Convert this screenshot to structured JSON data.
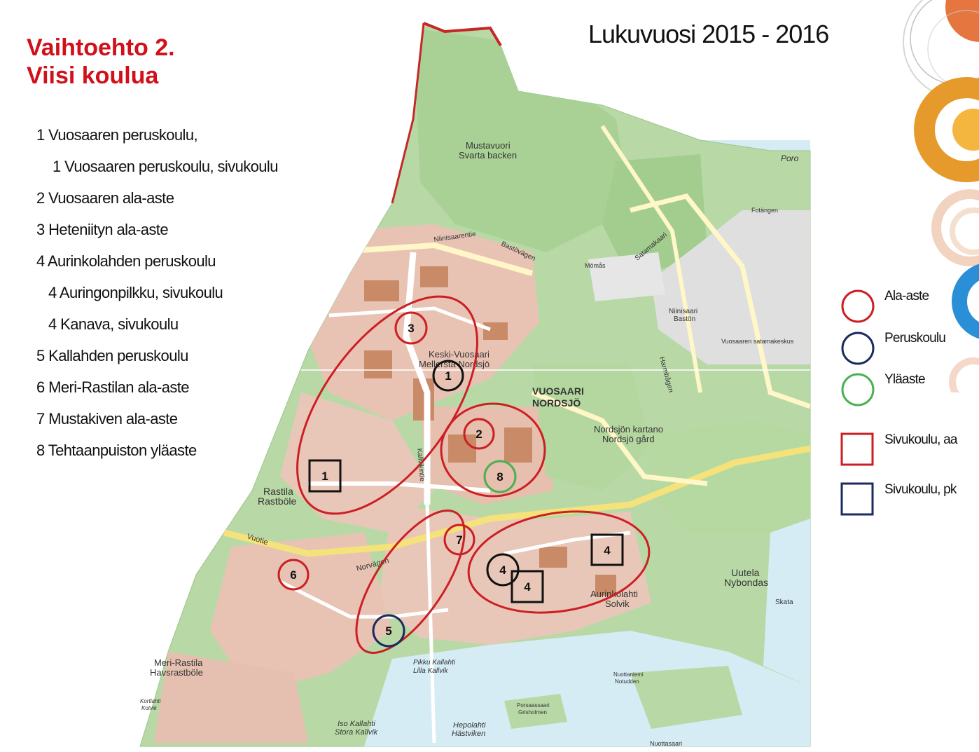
{
  "header": {
    "title_line1": "Vaihtoehto 2.",
    "title_line2": "Viisi koulua",
    "year": "Lukuvuosi 2015 - 2016"
  },
  "schools": [
    {
      "text": "1 Vuosaaren peruskoulu,",
      "indent": 0
    },
    {
      "text": "1 Vuosaaren peruskoulu, sivukoulu",
      "indent": 2
    },
    {
      "text": "2 Vuosaaren ala-aste",
      "indent": 0
    },
    {
      "text": "3 Heteniityn ala-aste",
      "indent": 0
    },
    {
      "text": "4 Aurinkolahden peruskoulu",
      "indent": 0
    },
    {
      "text": "4 Auringonpilkku, sivukoulu",
      "indent": 1
    },
    {
      "text": "4 Kanava, sivukoulu",
      "indent": 1
    },
    {
      "text": "5 Kallahden peruskoulu",
      "indent": 0
    },
    {
      "text": "6 Meri-Rastilan ala-aste",
      "indent": 0
    },
    {
      "text": "7 Mustakiven ala-aste",
      "indent": 0
    },
    {
      "text": "8 Tehtaanpuiston yläaste",
      "indent": 0
    }
  ],
  "legend": [
    {
      "label": "Ala-aste",
      "shape": "circle",
      "color": "#cc1f24"
    },
    {
      "label": "Peruskoulu",
      "shape": "circle",
      "color": "#1c2a5e"
    },
    {
      "label": "Yläaste",
      "shape": "circle",
      "color": "#4caf50"
    },
    {
      "label": "Sivukoulu, aa",
      "shape": "square",
      "color": "#cc1f24"
    },
    {
      "label": "Sivukoulu, pk",
      "shape": "square",
      "color": "#1c2a5e"
    }
  ],
  "map_markers": [
    {
      "num": "1",
      "kind": "circle",
      "color": "#111111"
    },
    {
      "num": "1",
      "kind": "square",
      "color": "#111111"
    },
    {
      "num": "2",
      "kind": "circle",
      "color": "#cc1f24"
    },
    {
      "num": "3",
      "kind": "circle",
      "color": "#cc1f24"
    },
    {
      "num": "4",
      "kind": "circle",
      "color": "#111111"
    },
    {
      "num": "4",
      "kind": "square",
      "color": "#111111"
    },
    {
      "num": "4",
      "kind": "square",
      "color": "#111111"
    },
    {
      "num": "5",
      "kind": "circle",
      "color": "#1c2a5e"
    },
    {
      "num": "6",
      "kind": "circle",
      "color": "#cc1f24"
    },
    {
      "num": "7",
      "kind": "circle",
      "color": "#cc1f24"
    },
    {
      "num": "8",
      "kind": "circle",
      "color": "#4caf50"
    }
  ],
  "map_labels": [
    "Mustavuori",
    "Svarta backen",
    "VUOSAARI",
    "NORDSJÖ",
    "Keski-Vuosaari",
    "Mellersta Nordsjö",
    "Rastila",
    "Rastböle",
    "Meri-Rastila",
    "Havsrastböle",
    "Aurinkolahti",
    "Solvik",
    "Uutela",
    "Nybondas",
    "Nordsjön kartano",
    "Nordsjö gård",
    "Niinisaari",
    "Bastön",
    "Vuosaaren satamakeskus",
    "Fotängen",
    "Mömås",
    "Skata",
    "Vuotie",
    "Norvägen",
    "Niinisaarentie",
    "Bastövägen",
    "Satamakaari",
    "Harmbågen",
    "Iso Kallahti",
    "Stora Kallvik",
    "Pikku Kallahti",
    "Lilla Kallvik",
    "Hepolahti",
    "Hästviken",
    "Kallvikintie",
    "Porsaassaari",
    "Grisholmen",
    "Nuottaniemi",
    "Notudden",
    "Kortlahti",
    "Kotvik",
    "Nuottasaari",
    "Poro"
  ]
}
